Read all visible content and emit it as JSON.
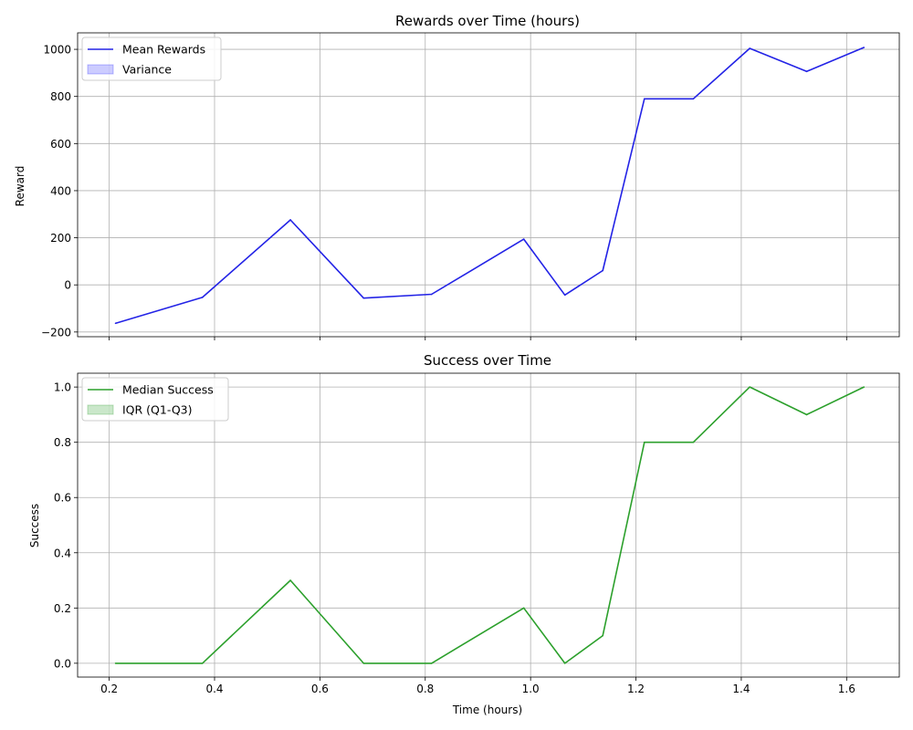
{
  "chart_data": [
    {
      "type": "line",
      "title": "Rewards over Time (hours)",
      "xlabel": "",
      "ylabel": "Reward",
      "xlim": [
        0.14,
        1.7
      ],
      "ylim": [
        -220,
        1070
      ],
      "xticks": [
        0.2,
        0.4,
        0.6,
        0.8,
        1.0,
        1.2,
        1.4,
        1.6
      ],
      "xtick_labels_shown": false,
      "yticks": [
        -200,
        0,
        200,
        400,
        600,
        800,
        1000
      ],
      "ytick_labels": [
        "−200",
        "0",
        "200",
        "400",
        "600",
        "800",
        "1000"
      ],
      "grid": true,
      "legend_position": "upper-left",
      "series": [
        {
          "name": "Mean Rewards",
          "kind": "line",
          "color": "#2323e6",
          "x": [
            0.212,
            0.377,
            0.544,
            0.683,
            0.812,
            0.987,
            1.065,
            1.137,
            1.216,
            1.309,
            1.416,
            1.524,
            1.633
          ],
          "y": [
            -163,
            -53,
            276,
            -56,
            -40,
            194,
            -43,
            61,
            790,
            790,
            1004,
            906,
            1008
          ]
        },
        {
          "name": "Variance",
          "kind": "band",
          "color": "#0000ff",
          "fill_opacity": 0.2
        }
      ]
    },
    {
      "type": "line",
      "title": "Success over Time",
      "xlabel": "Time (hours)",
      "ylabel": "Success",
      "xlim": [
        0.14,
        1.7
      ],
      "ylim": [
        -0.05,
        1.05
      ],
      "xticks": [
        0.2,
        0.4,
        0.6,
        0.8,
        1.0,
        1.2,
        1.4,
        1.6
      ],
      "xtick_labels": [
        "0.2",
        "0.4",
        "0.6",
        "0.8",
        "1.0",
        "1.2",
        "1.4",
        "1.6"
      ],
      "xtick_labels_shown": true,
      "yticks": [
        0.0,
        0.2,
        0.4,
        0.6,
        0.8,
        1.0
      ],
      "ytick_labels": [
        "0.0",
        "0.2",
        "0.4",
        "0.6",
        "0.8",
        "1.0"
      ],
      "grid": true,
      "legend_position": "upper-left",
      "series": [
        {
          "name": "Median Success",
          "kind": "line",
          "color": "#2ca02c",
          "x": [
            0.212,
            0.377,
            0.544,
            0.683,
            0.812,
            0.987,
            1.065,
            1.137,
            1.216,
            1.309,
            1.416,
            1.524,
            1.633
          ],
          "y": [
            0.0,
            0.0,
            0.3,
            0.0,
            0.0,
            0.2,
            0.0,
            0.1,
            0.8,
            0.8,
            1.0,
            0.9,
            1.0
          ]
        },
        {
          "name": "IQR (Q1-Q3)",
          "kind": "band",
          "color": "#2ca02c",
          "fill_opacity": 0.25
        }
      ]
    }
  ]
}
